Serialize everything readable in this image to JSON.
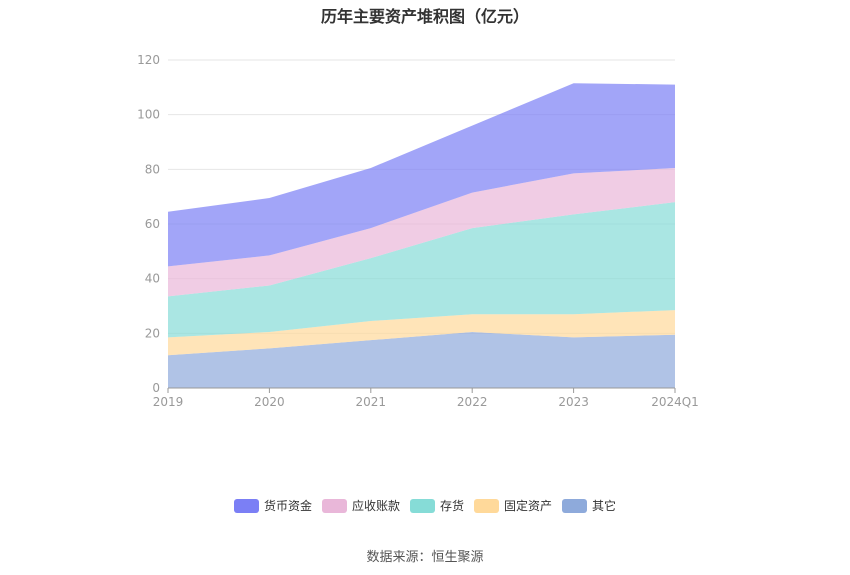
{
  "chart_data": {
    "type": "area",
    "stacked": true,
    "title": "历年主要资产堆积图（亿元）",
    "categories": [
      "2019",
      "2020",
      "2021",
      "2022",
      "2023",
      "2024Q1"
    ],
    "ylim": [
      0,
      120
    ],
    "yticks": [
      0,
      20,
      40,
      60,
      80,
      100,
      120
    ],
    "grid": true,
    "legend_position": "bottom",
    "series": [
      {
        "name": "其它",
        "color": "#8eaadb",
        "values": [
          12,
          14.5,
          17.5,
          20.5,
          18.5,
          19.5
        ]
      },
      {
        "name": "固定资产",
        "color": "#ffd99a",
        "values": [
          6.5,
          6,
          7,
          6.5,
          8.5,
          9
        ]
      },
      {
        "name": "存货",
        "color": "#86dcd7",
        "values": [
          15,
          17,
          23,
          31.5,
          36.5,
          39.5
        ]
      },
      {
        "name": "应收账款",
        "color": "#e9b7d9",
        "values": [
          11,
          11,
          11,
          13,
          15,
          12.5
        ]
      },
      {
        "name": "货币资金",
        "color": "#7b7ff5",
        "values": [
          20,
          21,
          22,
          24.5,
          33,
          30.5
        ]
      }
    ]
  },
  "source": "数据来源：恒生聚源"
}
